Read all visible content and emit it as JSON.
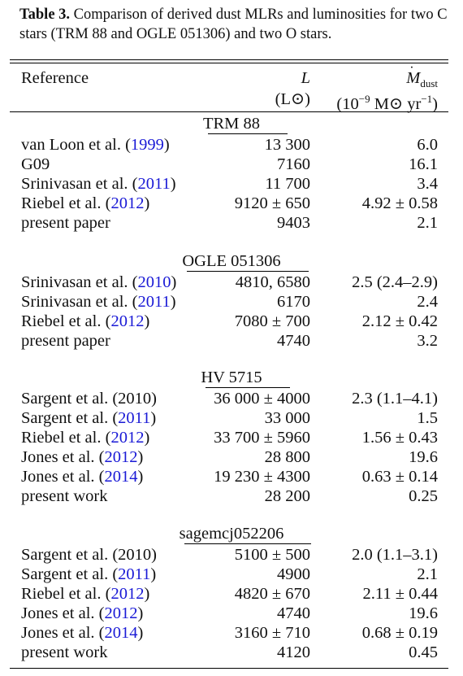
{
  "caption": {
    "label": "Table 3.",
    "text": "Comparison of derived dust MLRs and luminosities for two C stars (TRM 88 and OGLE 051306) and two O stars."
  },
  "header": {
    "reference": "Reference",
    "lum_symbol": "L",
    "lum_unit": "(L⊙)",
    "mlr_symbol": "M",
    "mlr_sub": "dust",
    "mlr_unit_prefix": "(10",
    "mlr_unit_exp1": "−9",
    "mlr_unit_mid": " M⊙ yr",
    "mlr_unit_exp2": "−1",
    "mlr_unit_suffix": ")"
  },
  "groups": [
    {
      "name": "TRM 88",
      "rows": [
        {
          "author": "van Loon et al. (",
          "year": "1999",
          "close": ")",
          "lum": "13 300",
          "mlr": "6.0"
        },
        {
          "author": "G09",
          "year": "",
          "close": "",
          "lum": "7160",
          "mlr": "16.1"
        },
        {
          "author": "Srinivasan et al. (",
          "year": "2011",
          "close": ")",
          "lum": "11 700",
          "mlr": "3.4"
        },
        {
          "author": "Riebel et al. (",
          "year": "2012",
          "close": ")",
          "lum": "9120 ± 650",
          "mlr": "4.92 ± 0.58"
        },
        {
          "author": "present paper",
          "year": "",
          "close": "",
          "lum": "9403",
          "mlr": "2.1"
        }
      ]
    },
    {
      "name": "OGLE 051306",
      "rows": [
        {
          "author": "Srinivasan et al. (",
          "year": "2010",
          "close": ")",
          "lum": "4810, 6580",
          "mlr": "2.5 (2.4–2.9)"
        },
        {
          "author": "Srinivasan et al. (",
          "year": "2011",
          "close": ")",
          "lum": "6170",
          "mlr": "2.4"
        },
        {
          "author": "Riebel et al. (",
          "year": "2012",
          "close": ")",
          "lum": "7080 ± 700",
          "mlr": "2.12 ± 0.42"
        },
        {
          "author": "present paper",
          "year": "",
          "close": "",
          "lum": "4740",
          "mlr": "3.2"
        }
      ]
    },
    {
      "name": "HV 5715",
      "rows": [
        {
          "author": "Sargent et al. (2010)",
          "year": "",
          "close": "",
          "lum": "36 000 ± 4000",
          "mlr": "2.3 (1.1–4.1)"
        },
        {
          "author": "Sargent et al. (",
          "year": "2011",
          "close": ")",
          "lum": "33 000",
          "mlr": "1.5"
        },
        {
          "author": "Riebel et al. (",
          "year": "2012",
          "close": ")",
          "lum": "33 700 ± 5960",
          "mlr": "1.56 ± 0.43"
        },
        {
          "author": "Jones et al. (",
          "year": "2012",
          "close": ")",
          "lum": "28 800",
          "mlr": "19.6"
        },
        {
          "author": "Jones et al. (",
          "year": "2014",
          "close": ")",
          "lum": "19 230 ± 4300",
          "mlr": "0.63 ± 0.14"
        },
        {
          "author": "present work",
          "year": "",
          "close": "",
          "lum": "28 200",
          "mlr": "0.25"
        }
      ]
    },
    {
      "name": "sagemcj052206",
      "rows": [
        {
          "author": "Sargent et al. (2010)",
          "year": "",
          "close": "",
          "lum": "5100 ± 500",
          "mlr": "2.0 (1.1–3.1)"
        },
        {
          "author": "Sargent et al. (",
          "year": "2011",
          "close": ")",
          "lum": "4900",
          "mlr": "2.1"
        },
        {
          "author": "Riebel et al. (",
          "year": "2012",
          "close": ")",
          "lum": "4820 ± 670",
          "mlr": "2.11 ± 0.44"
        },
        {
          "author": "Jones et al. (",
          "year": "2012",
          "close": ")",
          "lum": "4740",
          "mlr": "19.6"
        },
        {
          "author": "Jones et al. (",
          "year": "2014",
          "close": ")",
          "lum": "3160 ± 710",
          "mlr": "0.68 ± 0.19"
        },
        {
          "author": "present work",
          "year": "",
          "close": "",
          "lum": "4120",
          "mlr": "0.45"
        }
      ]
    }
  ],
  "colors": {
    "link": "#1a1ad6",
    "text": "#111111"
  }
}
